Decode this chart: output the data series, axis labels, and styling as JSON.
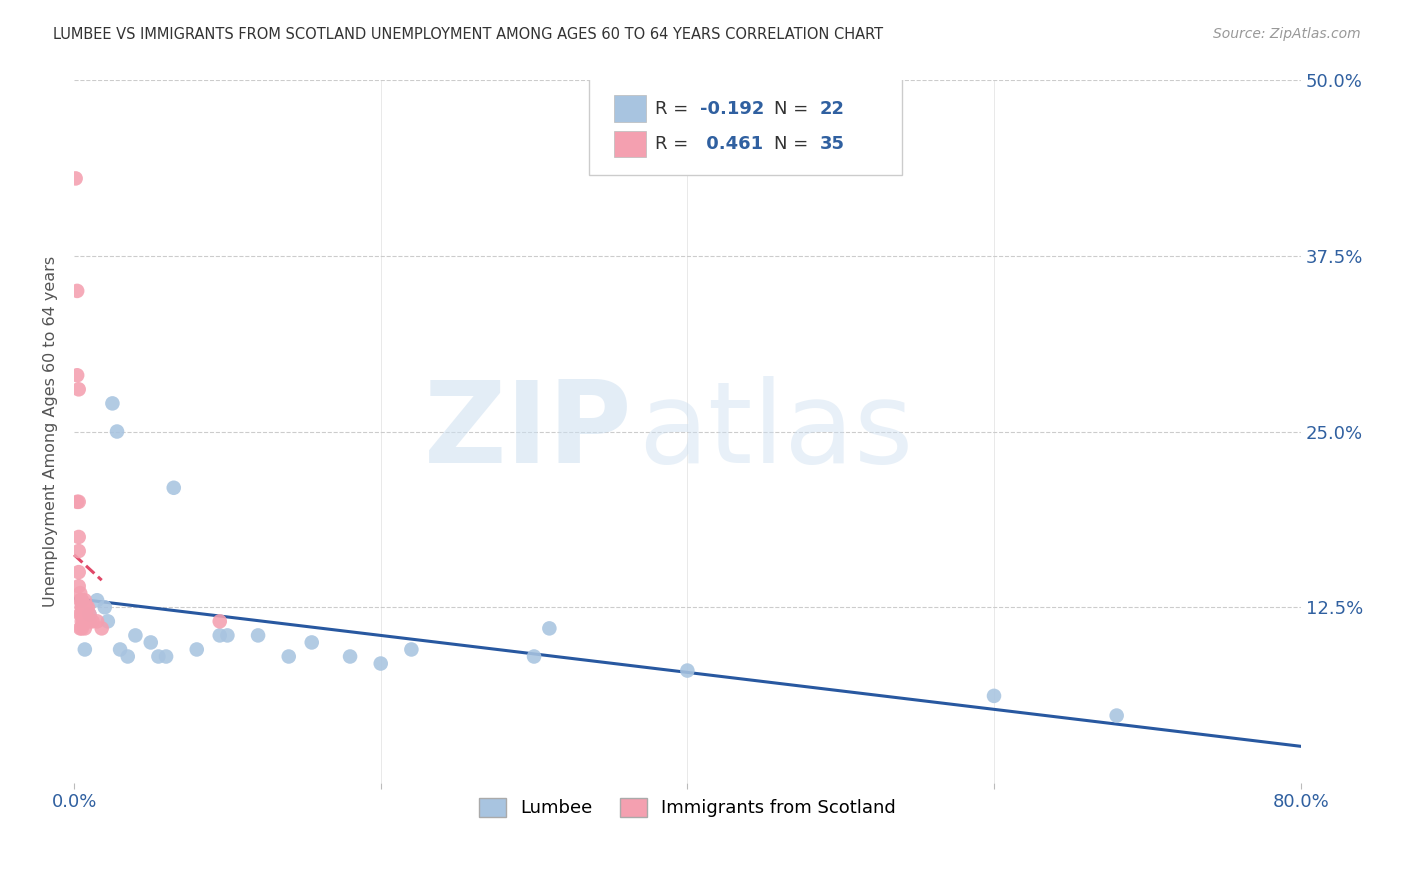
{
  "title": "LUMBEE VS IMMIGRANTS FROM SCOTLAND UNEMPLOYMENT AMONG AGES 60 TO 64 YEARS CORRELATION CHART",
  "source": "Source: ZipAtlas.com",
  "ylabel": "Unemployment Among Ages 60 to 64 years",
  "xlim": [
    0,
    0.8
  ],
  "ylim": [
    0,
    0.5
  ],
  "lumbee_color": "#a8c4e0",
  "scotland_color": "#f4a0b0",
  "trendline_blue": "#2858a0",
  "trendline_pink": "#e04868",
  "lumbee_x": [
    0.005,
    0.007,
    0.01,
    0.015,
    0.02,
    0.022,
    0.025,
    0.028,
    0.03,
    0.035,
    0.04,
    0.05,
    0.055,
    0.06,
    0.065,
    0.08,
    0.095,
    0.1,
    0.12,
    0.14,
    0.155,
    0.18,
    0.2,
    0.22,
    0.3,
    0.31,
    0.4,
    0.6,
    0.68
  ],
  "lumbee_y": [
    0.13,
    0.095,
    0.12,
    0.13,
    0.125,
    0.115,
    0.27,
    0.25,
    0.095,
    0.09,
    0.105,
    0.1,
    0.09,
    0.09,
    0.21,
    0.095,
    0.105,
    0.105,
    0.105,
    0.09,
    0.1,
    0.09,
    0.085,
    0.095,
    0.09,
    0.11,
    0.08,
    0.062,
    0.048
  ],
  "scotland_x": [
    0.001,
    0.002,
    0.002,
    0.002,
    0.003,
    0.003,
    0.003,
    0.003,
    0.003,
    0.003,
    0.004,
    0.004,
    0.004,
    0.004,
    0.005,
    0.005,
    0.005,
    0.005,
    0.005,
    0.005,
    0.006,
    0.006,
    0.006,
    0.007,
    0.007,
    0.007,
    0.008,
    0.008,
    0.009,
    0.01,
    0.01,
    0.012,
    0.015,
    0.018,
    0.095
  ],
  "scotland_y": [
    0.43,
    0.35,
    0.29,
    0.2,
    0.28,
    0.2,
    0.175,
    0.165,
    0.15,
    0.14,
    0.135,
    0.13,
    0.12,
    0.11,
    0.13,
    0.125,
    0.125,
    0.12,
    0.115,
    0.11,
    0.125,
    0.12,
    0.115,
    0.13,
    0.125,
    0.11,
    0.125,
    0.12,
    0.125,
    0.12,
    0.115,
    0.115,
    0.115,
    0.11,
    0.115
  ],
  "ytick_positions": [
    0.0,
    0.125,
    0.25,
    0.375,
    0.5
  ],
  "ytick_labels_right": [
    "",
    "12.5%",
    "25.0%",
    "37.5%",
    "50.0%"
  ],
  "xtick_positions": [
    0.0,
    0.2,
    0.4,
    0.6,
    0.8
  ],
  "xtick_labels": [
    "0.0%",
    "",
    "",
    "",
    "80.0%"
  ]
}
